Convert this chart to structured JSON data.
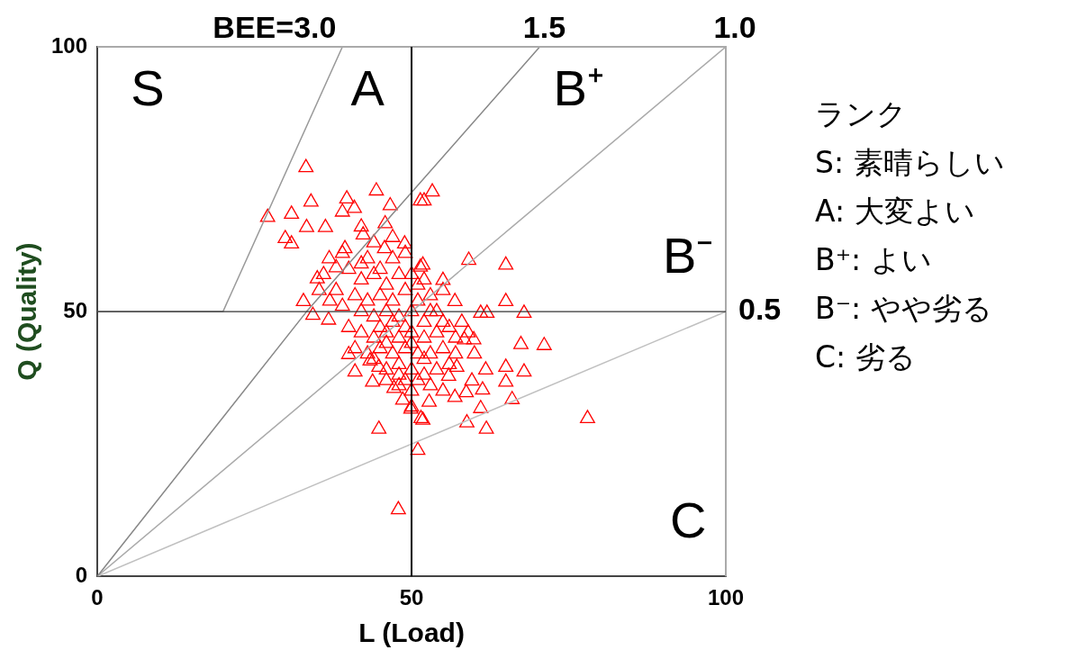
{
  "chart_data": {
    "type": "scatter",
    "xlabel": "L (Load)",
    "ylabel": "Q (Quality)",
    "xlim": [
      0,
      100
    ],
    "ylim": [
      0,
      100
    ],
    "xticks": [
      0,
      50,
      100
    ],
    "yticks": [
      0,
      50,
      100
    ],
    "grid": false,
    "legend": false,
    "series": [
      {
        "type": "line",
        "name": "BEE=3.0",
        "color": "#999999",
        "marker": "none",
        "x": [
          0,
          20,
          39
        ],
        "values": [
          50,
          50,
          100
        ]
      },
      {
        "type": "line",
        "name": "1.5",
        "color": "#888888",
        "marker": "none",
        "x": [
          0,
          33.3,
          70.4
        ],
        "values": [
          0,
          50,
          100
        ]
      },
      {
        "type": "line",
        "name": "1.0",
        "color": "#aaaaaa",
        "marker": "none",
        "x": [
          0,
          100
        ],
        "values": [
          0,
          100
        ]
      },
      {
        "type": "line",
        "name": "0.5",
        "color": "#c0c0c0",
        "marker": "none",
        "x": [
          0,
          100
        ],
        "values": [
          0,
          50
        ]
      },
      {
        "color": "#ff0000",
        "marker": "triangle",
        "x": [
          33.2,
          44.4,
          34,
          39.7,
          27.1,
          30.9,
          33.3,
          36.3,
          29.9,
          30.9,
          46.6,
          45.8,
          39,
          40.9,
          42,
          42.3,
          48.9,
          51.4,
          39.4,
          45.7,
          36.9,
          38,
          35,
          51.4,
          35.3,
          32.8,
          34.3,
          36.8,
          53.3,
          52,
          59.1,
          65,
          65,
          56.9,
          55,
          61,
          62,
          67.9,
          51.8,
          40,
          41,
          43.8,
          44.8,
          51,
          47.9,
          47.2,
          48.6,
          49.9,
          51.5,
          43.4,
          44.8,
          67.4,
          71.1,
          65,
          67.9,
          61.8,
          65,
          66,
          61,
          58.8,
          61.9,
          78,
          61.3,
          58.7,
          56.9,
          59.6,
          57.2,
          58.4,
          59.9,
          52.8,
          51.8,
          55,
          55.9,
          40,
          42,
          44,
          46,
          48,
          41,
          43,
          45,
          47,
          49,
          51,
          53,
          38,
          39,
          42,
          44,
          46,
          48,
          50,
          52,
          54,
          40,
          42,
          44,
          46,
          48,
          50,
          52,
          54,
          56,
          41,
          43,
          45,
          47,
          49,
          51,
          53,
          55,
          57,
          46,
          48,
          50,
          52,
          54,
          48,
          50,
          53,
          43,
          47,
          49,
          45,
          50,
          52,
          55,
          37,
          36,
          39,
          44,
          47,
          42,
          51,
          49,
          47,
          45,
          53,
          55,
          58,
          57,
          56,
          60,
          59,
          46,
          44,
          50,
          52,
          48,
          46,
          50,
          49,
          51
        ],
        "values": [
          77.2,
          72.8,
          70.7,
          71.3,
          67.8,
          68.4,
          65.9,
          65.9,
          63.8,
          62.8,
          70,
          66.6,
          68.8,
          69.5,
          66,
          64.5,
          62.8,
          70.9,
          61.9,
          61.9,
          60,
          58.3,
          56.2,
          58.4,
          54,
          51.9,
          49.3,
          48.4,
          72.6,
          70.9,
          59.7,
          58.8,
          51.9,
          51.9,
          55.9,
          49.7,
          49.7,
          49.7,
          58.8,
          41.9,
          38.6,
          36.7,
          27.8,
          23.8,
          12.6,
          35.5,
          33.3,
          31.6,
          29.8,
          40.7,
          39.5,
          43.8,
          43.6,
          39.5,
          38.6,
          39,
          36.7,
          33.4,
          31.7,
          29,
          27.8,
          29.8,
          35.2,
          34.7,
          33.8,
          36.9,
          39.5,
          44.7,
          44.7,
          32.9,
          29.5,
          35,
          37.8,
          58,
          56,
          57,
          55,
          57,
          53,
          52,
          53,
          52,
          54,
          55,
          53,
          54,
          51,
          50,
          49,
          50,
          49,
          50,
          48,
          50,
          47,
          46,
          45,
          46,
          45,
          46,
          45,
          46,
          47,
          43,
          42,
          43,
          42,
          43,
          42,
          42,
          43,
          42,
          39,
          40,
          39,
          38,
          39,
          36,
          35,
          36,
          60,
          60,
          61,
          58,
          57,
          56,
          54,
          52,
          57,
          61,
          63,
          64,
          59,
          52,
          47,
          48,
          47,
          50,
          48,
          48,
          45,
          40,
          42,
          46,
          44,
          41,
          44,
          41,
          38,
          37,
          32,
          37,
          37
        ]
      }
    ],
    "ref_lines": [
      {
        "axis": "x",
        "value": 50,
        "color": "#000000"
      },
      {
        "axis": "y",
        "value": 50,
        "color": "#333333"
      }
    ],
    "annotations": [
      "S",
      "A",
      "B⁺",
      "B⁻",
      "C",
      "ランク",
      "S: 素晴らしい",
      "A: 大変よい",
      "B⁺: よい",
      "B⁻: やや劣る",
      "C: 劣る"
    ]
  }
}
